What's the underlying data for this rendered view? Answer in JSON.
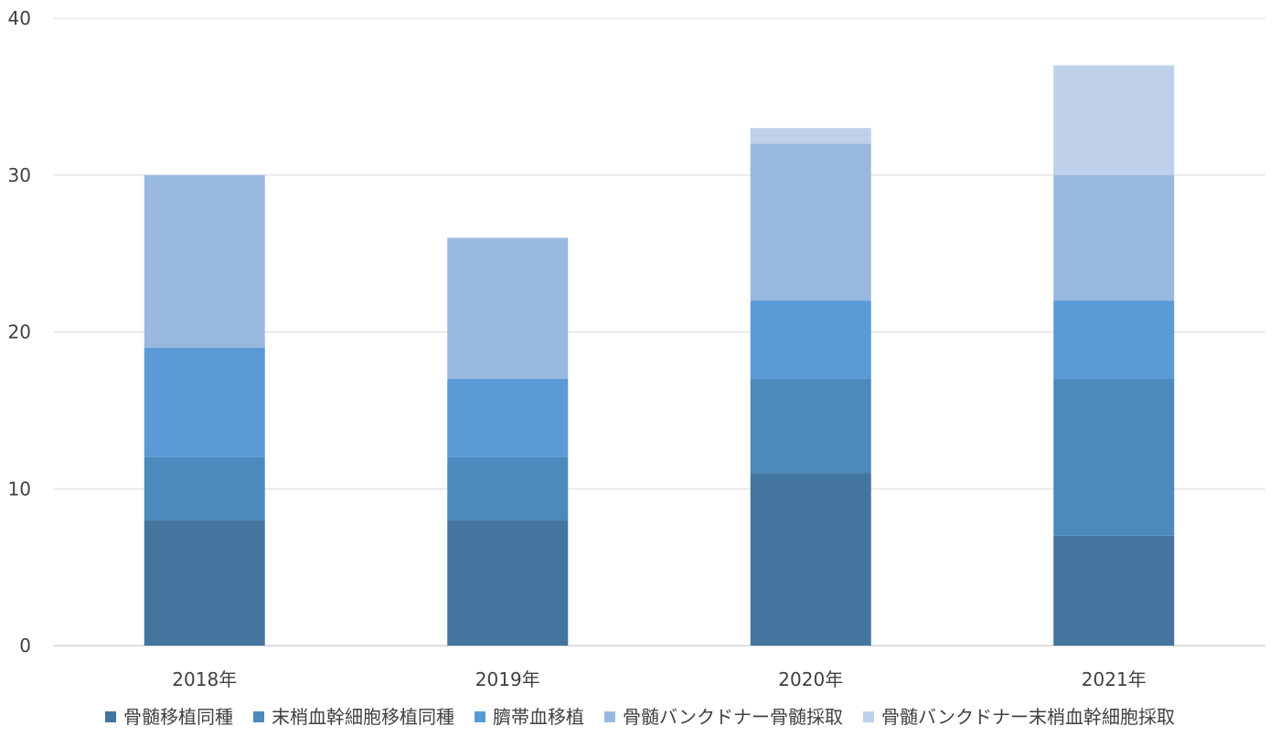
{
  "chart_data": {
    "type": "bar",
    "stacked": true,
    "categories": [
      "2018年",
      "2019年",
      "2020年",
      "2021年"
    ],
    "series": [
      {
        "name": "骨髄移植同種",
        "values": [
          8,
          8,
          11,
          7
        ],
        "color": "#44759E"
      },
      {
        "name": "末梢血幹細胞移植同種",
        "values": [
          4,
          4,
          6,
          10
        ],
        "color": "#4C89BC"
      },
      {
        "name": "臍帯血移植",
        "values": [
          7,
          5,
          5,
          5
        ],
        "color": "#5A9AD6"
      },
      {
        "name": "骨髄バンクドナー骨髄採取",
        "values": [
          11,
          9,
          10,
          8
        ],
        "color": "#98B8DF"
      },
      {
        "name": "骨髄バンクドナー末梢血幹細胞採取",
        "values": [
          0,
          0,
          1,
          7
        ],
        "color": "#BED0EA"
      }
    ],
    "ylim": [
      0,
      40
    ],
    "yticks": [
      "0",
      "10",
      "20",
      "30",
      "40"
    ],
    "grid": true,
    "legend_position": "bottom",
    "title": "",
    "xlabel": "",
    "ylabel": ""
  }
}
